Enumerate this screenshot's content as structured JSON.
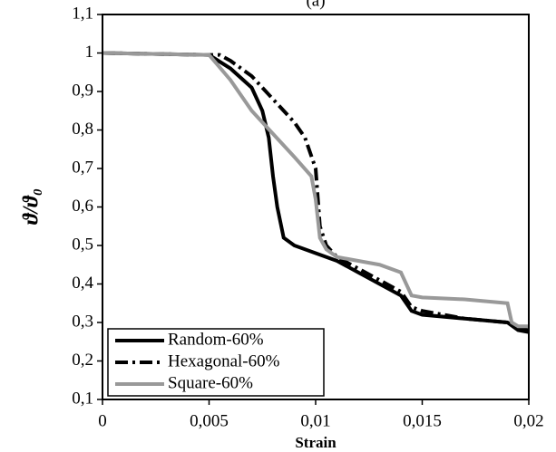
{
  "chart_data": {
    "type": "line",
    "title": "(a)",
    "xlabel": "Strain",
    "ylabel": "ϑ/ϑ₀",
    "xlim": [
      0,
      0.02
    ],
    "ylim": [
      0.1,
      1.1
    ],
    "xticks": [
      0,
      {
        "value": 0.005,
        "label": "0,005"
      },
      {
        "value": 0.01,
        "label": "0,01"
      },
      {
        "value": 0.015,
        "label": "0,015"
      },
      {
        "value": 0.02,
        "label": "0,02"
      }
    ],
    "yticks": [
      {
        "value": 0.1,
        "label": "0,1"
      },
      {
        "value": 0.2,
        "label": "0,2"
      },
      {
        "value": 0.3,
        "label": "0,3"
      },
      {
        "value": 0.4,
        "label": "0,4"
      },
      {
        "value": 0.5,
        "label": "0,5"
      },
      {
        "value": 0.6,
        "label": "0,6"
      },
      {
        "value": 0.7,
        "label": "0,7"
      },
      {
        "value": 0.8,
        "label": "0,8"
      },
      {
        "value": 0.9,
        "label": "0,9"
      },
      1,
      {
        "value": 1.1,
        "label": "1,1"
      }
    ],
    "legend": "lower left",
    "series": [
      {
        "name": "Random-60%",
        "color": "#000000",
        "linestyle": "solid",
        "x": [
          0,
          0.005,
          0.006,
          0.007,
          0.0075,
          0.0078,
          0.008,
          0.0082,
          0.0085,
          0.009,
          0.01,
          0.011,
          0.012,
          0.013,
          0.014,
          0.0145,
          0.015,
          0.017,
          0.019,
          0.0195,
          0.02
        ],
        "values": [
          1,
          0.995,
          0.96,
          0.91,
          0.85,
          0.78,
          0.68,
          0.6,
          0.52,
          0.5,
          0.48,
          0.46,
          0.43,
          0.4,
          0.37,
          0.33,
          0.32,
          0.31,
          0.3,
          0.28,
          0.275
        ]
      },
      {
        "name": "Hexagonal-60%",
        "color": "#000000",
        "linestyle": "dashdot",
        "x": [
          0,
          0.005,
          0.0055,
          0.006,
          0.007,
          0.008,
          0.009,
          0.0095,
          0.01,
          0.0102,
          0.0105,
          0.011,
          0.012,
          0.013,
          0.014,
          0.0145,
          0.015,
          0.017,
          0.019,
          0.0195,
          0.02
        ],
        "values": [
          1,
          0.995,
          0.995,
          0.98,
          0.94,
          0.88,
          0.82,
          0.78,
          0.7,
          0.55,
          0.5,
          0.47,
          0.44,
          0.41,
          0.38,
          0.34,
          0.33,
          0.31,
          0.3,
          0.285,
          0.28
        ]
      },
      {
        "name": "Square-60%",
        "color": "#999999",
        "linestyle": "solid",
        "x": [
          0,
          0.005,
          0.006,
          0.007,
          0.008,
          0.009,
          0.0098,
          0.01,
          0.0102,
          0.0105,
          0.011,
          0.012,
          0.013,
          0.014,
          0.0145,
          0.015,
          0.017,
          0.019,
          0.0192,
          0.0195,
          0.02
        ],
        "values": [
          1,
          0.995,
          0.93,
          0.85,
          0.79,
          0.73,
          0.68,
          0.62,
          0.52,
          0.49,
          0.47,
          0.46,
          0.45,
          0.43,
          0.37,
          0.365,
          0.36,
          0.35,
          0.3,
          0.29,
          0.29
        ]
      }
    ]
  }
}
